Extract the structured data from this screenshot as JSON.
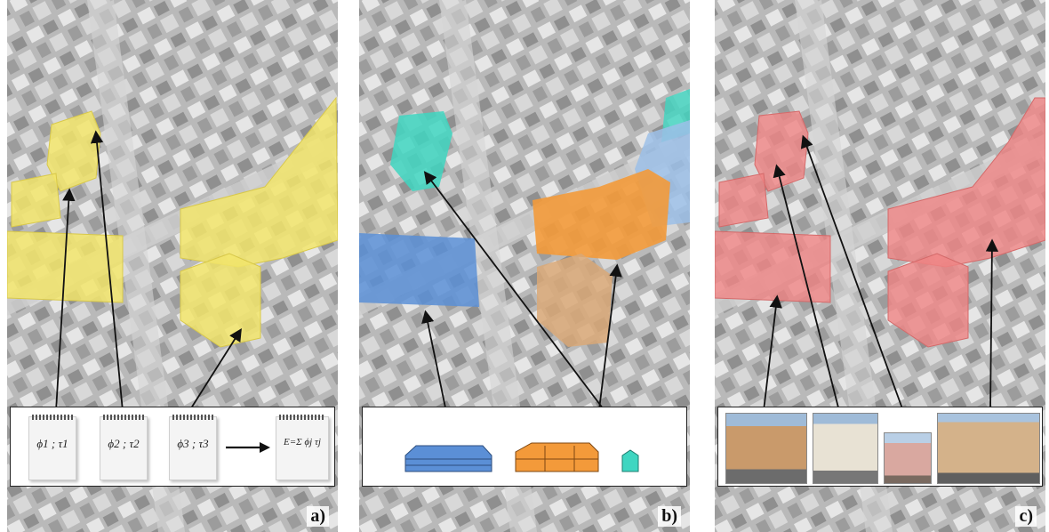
{
  "panels": [
    {
      "label": "a)",
      "highlight_color": "#f2e56b",
      "notepads": [
        {
          "text": "ϕ1 ; τ1"
        },
        {
          "text": "ϕ2 ; τ2"
        },
        {
          "text": "ϕ3 ; τ3"
        },
        {
          "text": "E=Σ ϕj τj"
        }
      ]
    },
    {
      "label": "b)",
      "colors": {
        "blue": "#5b8fd6",
        "orange": "#f39a3a",
        "cyan": "#3fd6c1",
        "tan": "#d9a877",
        "light_blue": "#9cc0e8"
      },
      "glyphs": [
        "blue-block-icon",
        "orange-wing-icon",
        "cyan-small-icon"
      ]
    },
    {
      "label": "c)",
      "highlight_color": "#f08585",
      "photos": [
        "building-photo-1",
        "building-photo-2",
        "building-photo-3",
        "building-photo-4"
      ]
    }
  ]
}
